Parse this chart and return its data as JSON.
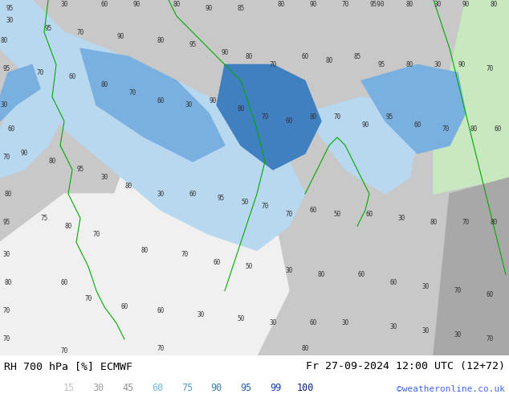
{
  "title_left": "RH 700 hPa [%] ECMWF",
  "title_right": "Fr 27-09-2024 12:00 UTC (12+72)",
  "watermark": "©weatheronline.co.uk",
  "legend_values": [
    "15",
    "30",
    "45",
    "60",
    "75",
    "90",
    "95",
    "99",
    "100"
  ],
  "legend_label_colors": [
    "#c0c0c0",
    "#a0a0a0",
    "#909090",
    "#70b8e0",
    "#50a0d0",
    "#3080c0",
    "#2060b0",
    "#1040a0",
    "#082080"
  ],
  "bg_color": "#ffffff",
  "text_color": "#000000",
  "watermark_color": "#4169e1",
  "label_fontsize": 8.5,
  "title_fontsize": 9.5,
  "map_colors": {
    "base": "#c8c8c8",
    "white_area": "#f0f0f0",
    "light_blue": "#b8d8f0",
    "mid_blue": "#7ab0e0",
    "dark_blue": "#4080c0",
    "deep_blue": "#2050a0",
    "light_green": "#c8e8c0",
    "grey_dark": "#a8a8a8"
  }
}
